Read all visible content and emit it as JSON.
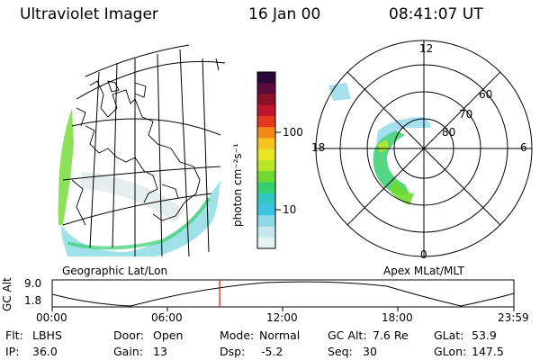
{
  "header": {
    "instrument": "Ultraviolet Imager",
    "date": "16 Jan 00",
    "time": "08:41:07 UT"
  },
  "geo_panel": {
    "caption": "Geographic Lat/Lon"
  },
  "polar_panel": {
    "caption": "Apex MLat/MLT",
    "mlt_labels": {
      "top": "12",
      "left": "18",
      "right": "6",
      "bottom": "0"
    },
    "lat_rings": [
      "60",
      "70",
      "80"
    ]
  },
  "colorbar": {
    "label": "photon cm⁻²s⁻¹",
    "ticks": [
      "100",
      "10"
    ],
    "colors": [
      "#2a0a3a",
      "#5b0b3b",
      "#8b1226",
      "#c0142a",
      "#e33a1f",
      "#f28a1a",
      "#f5c21e",
      "#e8e624",
      "#b7e52a",
      "#6fd92f",
      "#36cf6f",
      "#33c9c2",
      "#3ec4e0",
      "#8fd8ea",
      "#c6e8ee",
      "#e6f2f2"
    ]
  },
  "altitude_plot": {
    "ylabel": "GC Alt",
    "yticks": [
      "9.0",
      "1.8"
    ],
    "xticks": [
      "00:00",
      "06:00",
      "12:00",
      "18:00",
      "23:59"
    ]
  },
  "info": {
    "flt_label": "Flt:",
    "flt_value": "LBHS",
    "ip_label": "IP:",
    "ip_value": "36.0",
    "door_label": "Door:",
    "door_value": "Open",
    "gain_label": "Gain:",
    "gain_value": "13",
    "mode_label": "Mode:",
    "mode_value": "Normal",
    "dsp_label": "Dsp:",
    "dsp_value": "-5.2",
    "gcalt_label": "GC Alt:",
    "gcalt_value": "7.6 Re",
    "seq_label": "Seq:",
    "seq_value": "30",
    "glat_label": "GLat:",
    "glat_value": "53.9",
    "glon_label": "GLon:",
    "glon_value": "147.5"
  }
}
